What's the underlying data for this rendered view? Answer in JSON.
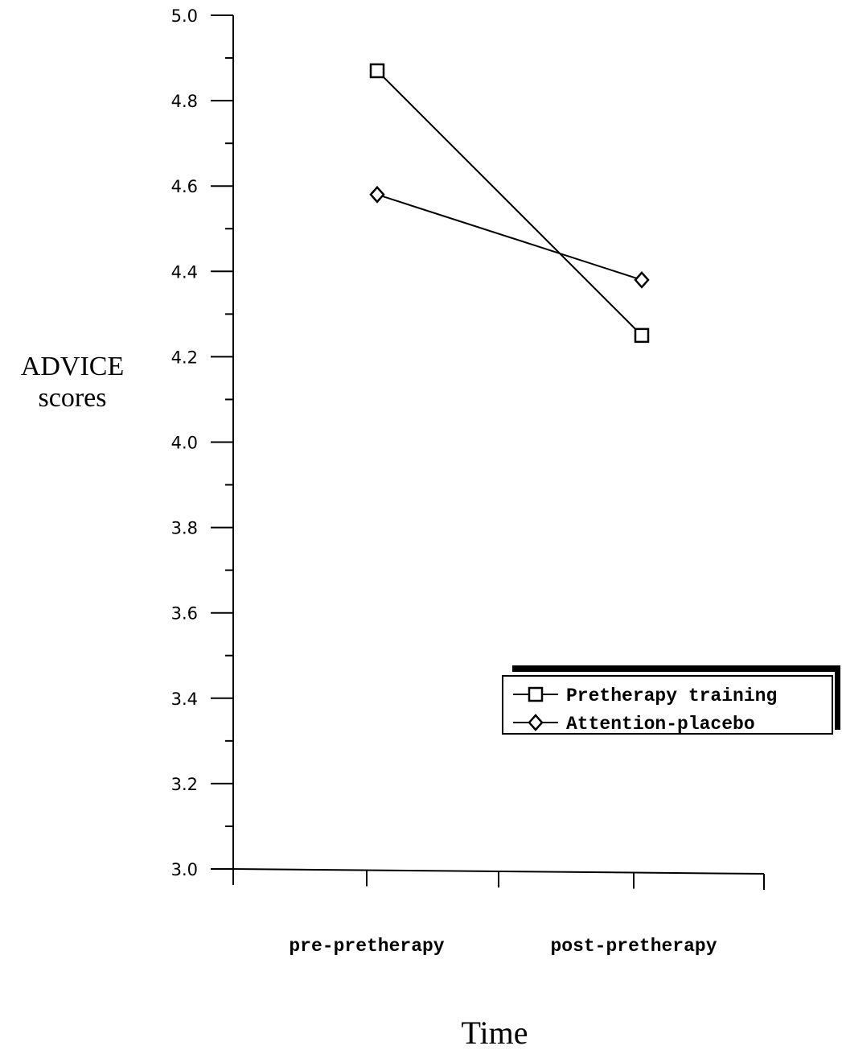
{
  "chart_data": {
    "type": "line",
    "categories": [
      "pre-pretherapy",
      "post-pretherapy"
    ],
    "series": [
      {
        "name": "Pretherapy training",
        "marker": "square",
        "values": [
          4.87,
          4.25
        ]
      },
      {
        "name": "Attention-placebo",
        "marker": "diamond",
        "values": [
          4.58,
          4.38
        ]
      }
    ],
    "ylim": [
      3.0,
      5.0
    ],
    "y_ticks": [
      "3.0",
      "3.2",
      "3.4",
      "3.6",
      "3.8",
      "4.0",
      "4.2",
      "4.4",
      "4.6",
      "4.8",
      "5.0"
    ],
    "ylabel_line1": "ADVICE",
    "ylabel_line2": "scores",
    "xlabel": "Time",
    "legend_position": "right",
    "grid": false,
    "colors": {
      "line": "#000000",
      "background": "#ffffff"
    }
  }
}
